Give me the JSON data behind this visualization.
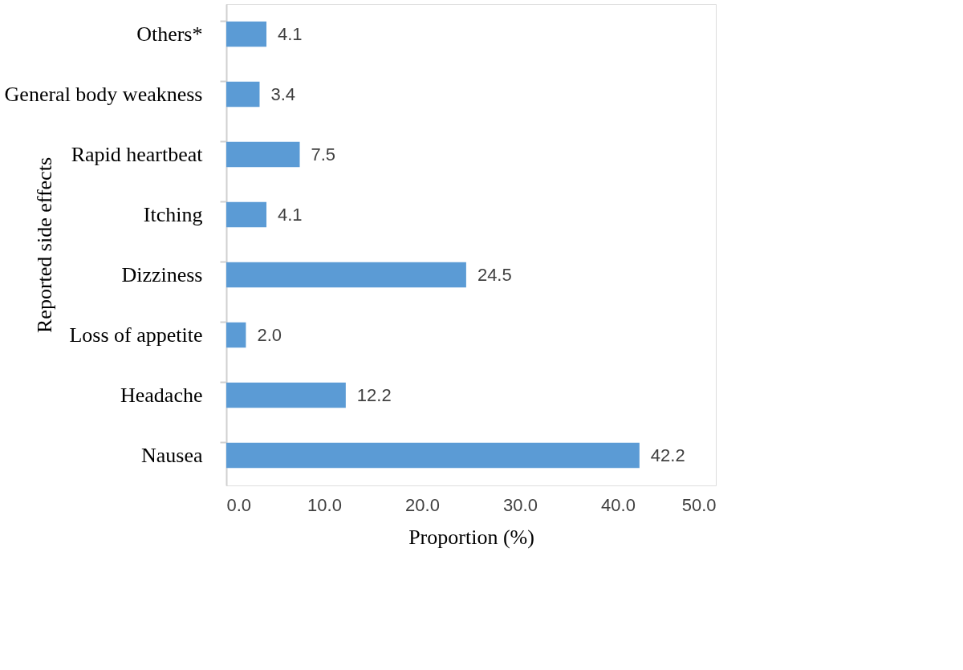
{
  "chart_data": {
    "type": "bar",
    "orientation": "horizontal",
    "categories": [
      "Others*",
      "General body weakness",
      "Rapid heartbeat",
      "Itching",
      "Dizziness",
      "Loss of appetite",
      "Headache",
      "Nausea"
    ],
    "values": [
      4.1,
      3.4,
      7.5,
      4.1,
      24.5,
      2.0,
      12.2,
      42.2
    ],
    "value_labels": [
      "4.1",
      "3.4",
      "7.5",
      "4.1",
      "24.5",
      "2.0",
      "12.2",
      "42.2"
    ],
    "color": "#5b9bd5",
    "xlabel": "Proportion (%)",
    "ylabel": "Reported side effects",
    "xlim": [
      0,
      50
    ],
    "xticks": [
      {
        "value": 0,
        "label": "0.0"
      },
      {
        "value": 10,
        "label": "10.0"
      },
      {
        "value": 20,
        "label": "20.0"
      },
      {
        "value": 30,
        "label": "30.0"
      },
      {
        "value": 40,
        "label": "40.0"
      },
      {
        "value": 50,
        "label": "50.0"
      }
    ],
    "grid": false
  }
}
